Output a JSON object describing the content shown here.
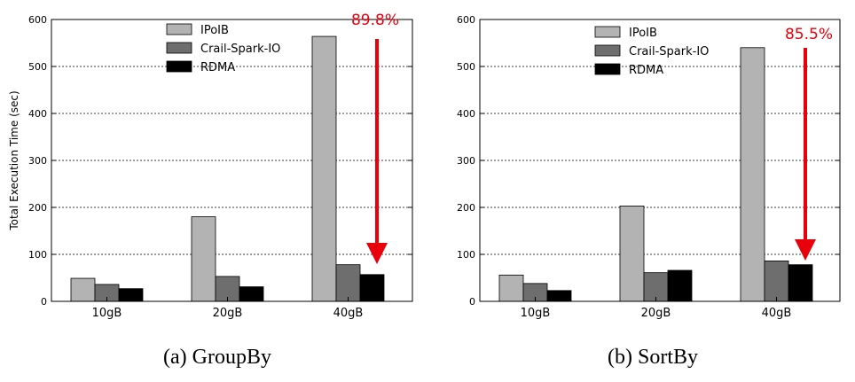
{
  "chart_data": [
    {
      "type": "bar",
      "caption": "(a)  GroupBy",
      "ylabel": "Total Execution Time (sec)",
      "ylim": [
        0,
        600
      ],
      "yticks": [
        "0",
        "100",
        "200",
        "300",
        "400",
        "500",
        "600"
      ],
      "categories": [
        "10gB",
        "20gB",
        "40gB"
      ],
      "series": [
        {
          "name": "IPoIB",
          "color": "#b3b3b3",
          "values": [
            49,
            180,
            564
          ]
        },
        {
          "name": "Crail-Spark-IO",
          "color": "#6e6e6e",
          "values": [
            36,
            53,
            78
          ]
        },
        {
          "name": "RDMA",
          "color": "#000000",
          "values": [
            27,
            31,
            57
          ]
        }
      ],
      "annotation": {
        "text": "89.8%",
        "color": "#e8000b"
      },
      "grid": true,
      "legend": "top-center"
    },
    {
      "type": "bar",
      "caption": "(b)  SortBy",
      "ylabel": "",
      "ylim": [
        0,
        600
      ],
      "yticks": [
        "0",
        "100",
        "200",
        "300",
        "400",
        "500",
        "600"
      ],
      "categories": [
        "10gB",
        "20gB",
        "40gB"
      ],
      "series": [
        {
          "name": "IPoIB",
          "color": "#b3b3b3",
          "values": [
            56,
            203,
            540
          ]
        },
        {
          "name": "Crail-Spark-IO",
          "color": "#6e6e6e",
          "values": [
            38,
            61,
            86
          ]
        },
        {
          "name": "RDMA",
          "color": "#000000",
          "values": [
            23,
            66,
            78
          ]
        }
      ],
      "annotation": {
        "text": "85.5%",
        "color": "#e8000b"
      },
      "grid": true,
      "legend": "top-center"
    }
  ]
}
